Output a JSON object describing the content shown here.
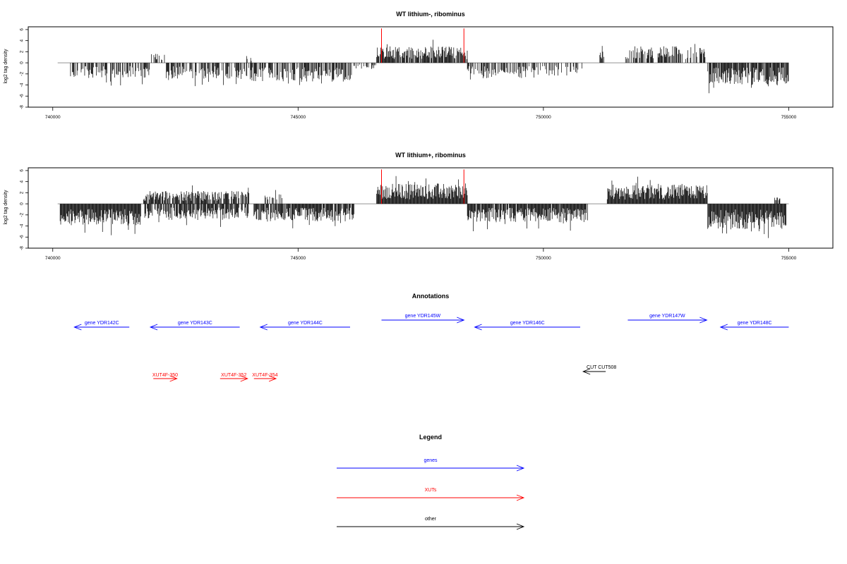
{
  "chart_data": [
    {
      "type": "bar",
      "title": "WT lithium-, ribominus",
      "ylabel": "log2 tag density",
      "xlim": [
        739500,
        755900
      ],
      "ylim": [
        -8,
        6.5
      ],
      "x_ticks": [
        "740000",
        "745000",
        "750000",
        "755000"
      ],
      "y_ticks": [
        "-8",
        "-6",
        "-4",
        "-2",
        "0",
        "2",
        "4",
        "6"
      ],
      "markers": [
        746700,
        748380
      ],
      "segments": [
        {
          "from": 740350,
          "to": 742000,
          "sign": -1,
          "mag": 2.4,
          "density": 0.55
        },
        {
          "from": 742000,
          "to": 742300,
          "sign": 1,
          "mag": 1.5,
          "density": 0.5
        },
        {
          "from": 742300,
          "to": 744000,
          "sign": -1,
          "mag": 2.5,
          "density": 0.55
        },
        {
          "from": 743950,
          "to": 744050,
          "sign": 1,
          "mag": 1.3,
          "density": 0.5
        },
        {
          "from": 744000,
          "to": 746100,
          "sign": -1,
          "mag": 3.0,
          "density": 0.7
        },
        {
          "from": 746100,
          "to": 746600,
          "sign": -1,
          "mag": 1.0,
          "density": 0.4
        },
        {
          "from": 746600,
          "to": 748450,
          "sign": 1,
          "mag": 2.6,
          "density": 0.85
        },
        {
          "from": 748450,
          "to": 749900,
          "sign": -1,
          "mag": 2.4,
          "density": 0.6
        },
        {
          "from": 749900,
          "to": 750800,
          "sign": -1,
          "mag": 2.0,
          "density": 0.45
        },
        {
          "from": 751150,
          "to": 751250,
          "sign": 1,
          "mag": 1.8,
          "density": 0.6
        },
        {
          "from": 751650,
          "to": 753300,
          "sign": 1,
          "mag": 2.6,
          "density": 0.6
        },
        {
          "from": 753350,
          "to": 755000,
          "sign": -1,
          "mag": 3.4,
          "density": 0.85
        }
      ]
    },
    {
      "type": "bar",
      "title": "WT lithium+, ribominus",
      "ylabel": "log2 tag density",
      "xlim": [
        739500,
        755900
      ],
      "ylim": [
        -8,
        6.5
      ],
      "x_ticks": [
        "740000",
        "745000",
        "750000",
        "755000"
      ],
      "y_ticks": [
        "-8",
        "-6",
        "-4",
        "-2",
        "0",
        "2",
        "4",
        "6"
      ],
      "markers": [
        746700,
        748380
      ],
      "segments": [
        {
          "from": 740150,
          "to": 741800,
          "sign": -1,
          "mag": 3.4,
          "density": 1.0
        },
        {
          "from": 741850,
          "to": 744000,
          "sign": 1,
          "mag": 2.0,
          "density": 0.8
        },
        {
          "from": 741850,
          "to": 744000,
          "sign": -1,
          "mag": 2.6,
          "density": 0.8
        },
        {
          "from": 744300,
          "to": 744700,
          "sign": 1,
          "mag": 1.6,
          "density": 0.5
        },
        {
          "from": 744100,
          "to": 746150,
          "sign": -1,
          "mag": 2.8,
          "density": 0.9
        },
        {
          "from": 746600,
          "to": 748450,
          "sign": 1,
          "mag": 3.2,
          "density": 1.0
        },
        {
          "from": 748450,
          "to": 750900,
          "sign": -1,
          "mag": 2.9,
          "density": 0.95
        },
        {
          "from": 751300,
          "to": 753350,
          "sign": 1,
          "mag": 3.0,
          "density": 1.0
        },
        {
          "from": 753350,
          "to": 754950,
          "sign": -1,
          "mag": 4.0,
          "density": 1.0
        },
        {
          "from": 754700,
          "to": 754850,
          "sign": 1,
          "mag": 1.0,
          "density": 0.6
        }
      ]
    }
  ],
  "annotations": {
    "title": "Annotations",
    "genes": [
      {
        "label": "gene YDR142C",
        "start": 741560,
        "end": 740440,
        "row": 2
      },
      {
        "label": "gene YDR143C",
        "start": 743810,
        "end": 741990,
        "row": 2
      },
      {
        "label": "gene YDR144C",
        "start": 746060,
        "end": 744230,
        "row": 2
      },
      {
        "label": "gene YDR145W",
        "start": 746700,
        "end": 748380,
        "row": 1
      },
      {
        "label": "gene YDR146C",
        "start": 750750,
        "end": 748600,
        "row": 2
      },
      {
        "label": "gene YDR147W",
        "start": 751720,
        "end": 753330,
        "row": 1
      },
      {
        "label": "gene YDR148C",
        "start": 755000,
        "end": 753610,
        "row": 2
      }
    ],
    "xuts": [
      {
        "label": "XUT4F-350",
        "start": 742050,
        "end": 742530
      },
      {
        "label": "XUT4F-352",
        "start": 743410,
        "end": 743970
      },
      {
        "label": "XUT4F-354",
        "start": 744100,
        "end": 744550
      }
    ],
    "others": [
      {
        "label": "CUT CUT508",
        "start": 751270,
        "end": 750810
      }
    ]
  },
  "legend": {
    "title": "Legend",
    "items": [
      {
        "label": "genes",
        "color": "#0000ff"
      },
      {
        "label": "XUTs",
        "color": "#ff0000"
      },
      {
        "label": "other",
        "color": "#000000"
      }
    ]
  },
  "colors": {
    "genes": "#0000ff",
    "xuts": "#ff0000",
    "other": "#000000",
    "marker": "#ff0000",
    "signal": "#000000"
  }
}
